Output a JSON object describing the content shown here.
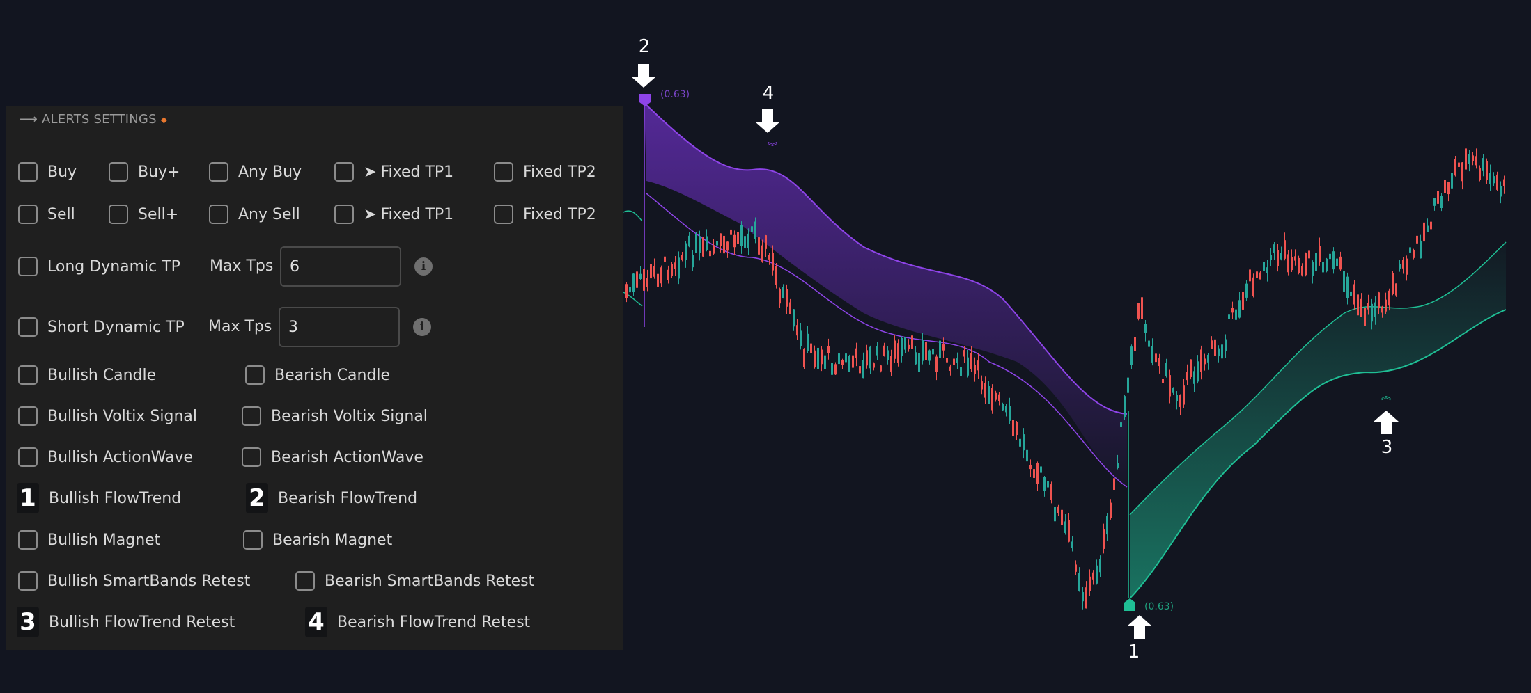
{
  "panel": {
    "title": "ALERTS SETTINGS",
    "row_buy": [
      "Buy",
      "Buy+",
      "Any Buy",
      "Fixed TP1",
      "Fixed TP2"
    ],
    "row_sell": [
      "Sell",
      "Sell+",
      "Any Sell",
      "Fixed TP1",
      "Fixed TP2"
    ],
    "long_dynamic_tp": {
      "label": "Long Dynamic TP",
      "max_label": "Max Tps",
      "value": "6"
    },
    "short_dynamic_tp": {
      "label": "Short Dynamic TP",
      "max_label": "Max Tps",
      "value": "3"
    },
    "pairs": [
      [
        "Bullish Candle",
        "Bearish Candle"
      ],
      [
        "Bullish Voltix Signal",
        "Bearish Voltix Signal"
      ],
      [
        "Bullish ActionWave",
        "Bearish ActionWave"
      ],
      [
        "Bullish FlowTrend",
        "Bearish FlowTrend"
      ],
      [
        "Bullish Magnet",
        "Bearish Magnet"
      ],
      [
        "Bullish SmartBands Retest",
        "Bearish SmartBands Retest"
      ],
      [
        "Bullish FlowTrend Retest",
        "Bearish FlowTrend Retest"
      ]
    ],
    "badges": {
      "flowtrend_bull": "1",
      "flowtrend_bear": "2",
      "retest_bull": "3",
      "retest_bear": "4"
    }
  },
  "chart": {
    "markers": [
      "2",
      "4",
      "1",
      "3"
    ],
    "bear_band_label": "(0.63)",
    "bull_band_label": "(0.63)",
    "colors": {
      "bull": "#26a69a",
      "bear": "#ef5350",
      "purple": "#8e44e8",
      "teal": "#1fbf95"
    }
  }
}
